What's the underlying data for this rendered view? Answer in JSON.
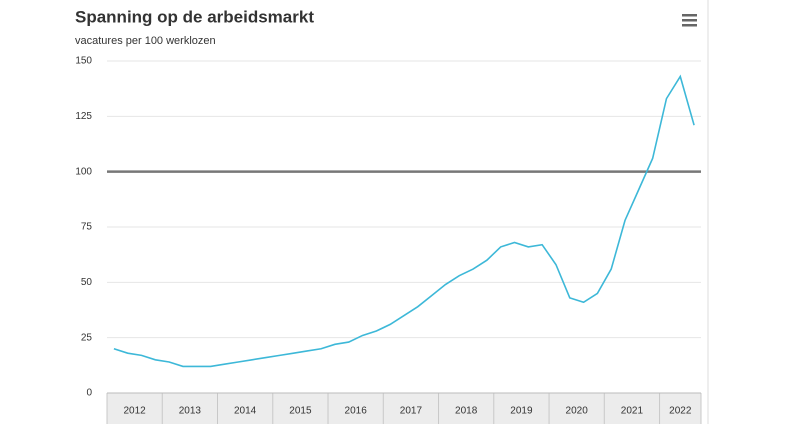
{
  "chart_data": {
    "type": "line",
    "title": "Spanning op de arbeidsmarkt",
    "subtitle": "vacatures per 100 werklozen",
    "x": [
      2012.125,
      2012.375,
      2012.625,
      2012.875,
      2013.125,
      2013.375,
      2013.625,
      2013.875,
      2014.125,
      2014.375,
      2014.625,
      2014.875,
      2015.125,
      2015.375,
      2015.625,
      2015.875,
      2016.125,
      2016.375,
      2016.625,
      2016.875,
      2017.125,
      2017.375,
      2017.625,
      2017.875,
      2018.125,
      2018.375,
      2018.625,
      2018.875,
      2019.125,
      2019.375,
      2019.625,
      2019.875,
      2020.125,
      2020.375,
      2020.625,
      2020.875,
      2021.125,
      2021.375,
      2021.625,
      2021.875,
      2022.125,
      2022.375,
      2022.625
    ],
    "series": [
      {
        "color": "#3db8d8",
        "values": [
          20,
          18,
          17,
          15,
          14,
          12,
          12,
          12,
          13,
          14,
          15,
          16,
          17,
          18,
          19,
          20,
          22,
          23,
          26,
          28,
          31,
          35,
          39,
          44,
          49,
          53,
          56,
          60,
          66,
          68,
          66,
          67,
          58,
          43,
          41,
          45,
          56,
          78,
          92,
          106,
          133,
          143,
          121
        ]
      }
    ],
    "xlim": [
      2012,
      2022.75
    ],
    "xticks": [
      {
        "value": 2012.5,
        "label": "2012"
      },
      {
        "value": 2013.5,
        "label": "2013"
      },
      {
        "value": 2014.5,
        "label": "2014"
      },
      {
        "value": 2015.5,
        "label": "2015"
      },
      {
        "value": 2016.5,
        "label": "2016"
      },
      {
        "value": 2017.5,
        "label": "2017"
      },
      {
        "value": 2018.5,
        "label": "2018"
      },
      {
        "value": 2019.5,
        "label": "2019"
      },
      {
        "value": 2020.5,
        "label": "2020"
      },
      {
        "value": 2021.5,
        "label": "2021"
      },
      {
        "value": 2022.375,
        "label": "2022"
      }
    ],
    "ylim": [
      0,
      150
    ],
    "yticks": [
      0,
      25,
      50,
      75,
      100,
      125,
      150
    ],
    "grid": true,
    "reference_line": {
      "value": 100,
      "color": "#777777"
    }
  }
}
